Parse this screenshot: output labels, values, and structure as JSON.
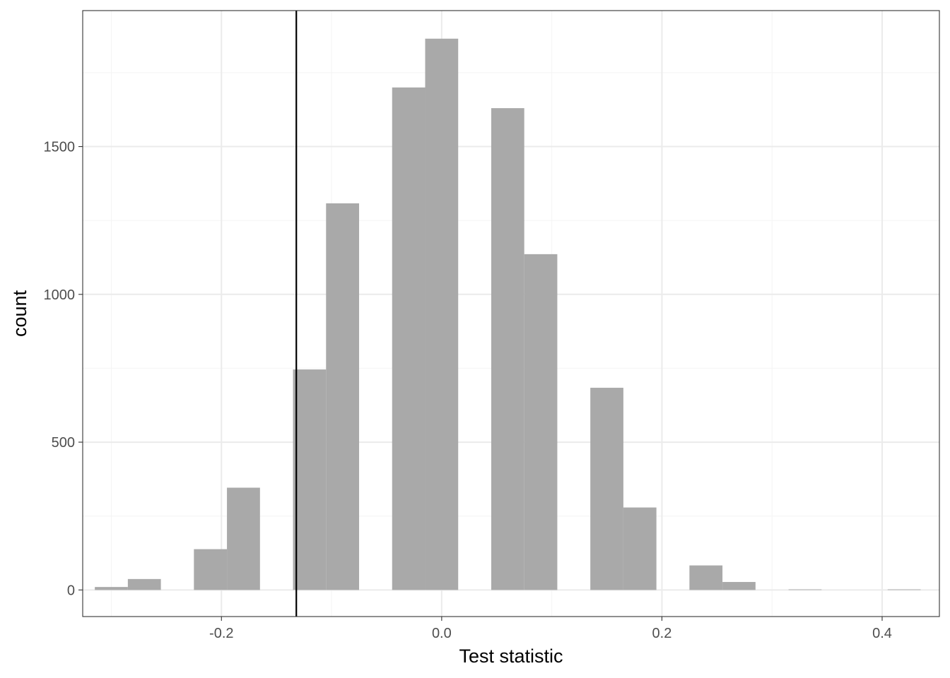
{
  "chart_data": {
    "type": "bar",
    "subtype": "histogram",
    "xlabel": "Test statistic",
    "ylabel": "count",
    "xlim": [
      -0.326,
      0.452
    ],
    "ylim": [
      -90,
      1960
    ],
    "x_ticks": [
      {
        "value": -0.2,
        "label": "-0.2"
      },
      {
        "value": 0.0,
        "label": "0.0"
      },
      {
        "value": 0.2,
        "label": "0.2"
      },
      {
        "value": 0.4,
        "label": "0.4"
      }
    ],
    "y_ticks": [
      {
        "value": 0,
        "label": "0"
      },
      {
        "value": 500,
        "label": "500"
      },
      {
        "value": 1000,
        "label": "1000"
      },
      {
        "value": 1500,
        "label": "1500"
      }
    ],
    "x_minor": [
      -0.3,
      -0.1,
      0.1,
      0.3
    ],
    "y_minor": [
      250,
      750,
      1250,
      1750
    ],
    "bin_width": 0.03,
    "bins": [
      {
        "x": -0.3,
        "count": 10
      },
      {
        "x": -0.27,
        "count": 37
      },
      {
        "x": -0.24,
        "count": 0
      },
      {
        "x": -0.21,
        "count": 138
      },
      {
        "x": -0.18,
        "count": 346
      },
      {
        "x": -0.15,
        "count": 0
      },
      {
        "x": -0.12,
        "count": 746
      },
      {
        "x": -0.09,
        "count": 1308
      },
      {
        "x": -0.06,
        "count": 0
      },
      {
        "x": -0.03,
        "count": 1700
      },
      {
        "x": 0.0,
        "count": 1865
      },
      {
        "x": 0.03,
        "count": 0
      },
      {
        "x": 0.06,
        "count": 1630
      },
      {
        "x": 0.09,
        "count": 1136
      },
      {
        "x": 0.12,
        "count": 0
      },
      {
        "x": 0.15,
        "count": 684
      },
      {
        "x": 0.18,
        "count": 279
      },
      {
        "x": 0.21,
        "count": 0
      },
      {
        "x": 0.24,
        "count": 83
      },
      {
        "x": 0.27,
        "count": 27
      },
      {
        "x": 0.3,
        "count": 0
      },
      {
        "x": 0.33,
        "count": 2
      },
      {
        "x": 0.36,
        "count": 0
      },
      {
        "x": 0.39,
        "count": 0
      },
      {
        "x": 0.42,
        "count": 2
      }
    ],
    "vline": {
      "x": -0.132
    },
    "grid": true,
    "legend": "none",
    "colors": {
      "bar": "#a9a9a9",
      "grid_major": "#ebebeb",
      "grid_minor": "#f4f4f4",
      "panel_border": "#333333",
      "vline": "#000000"
    }
  }
}
